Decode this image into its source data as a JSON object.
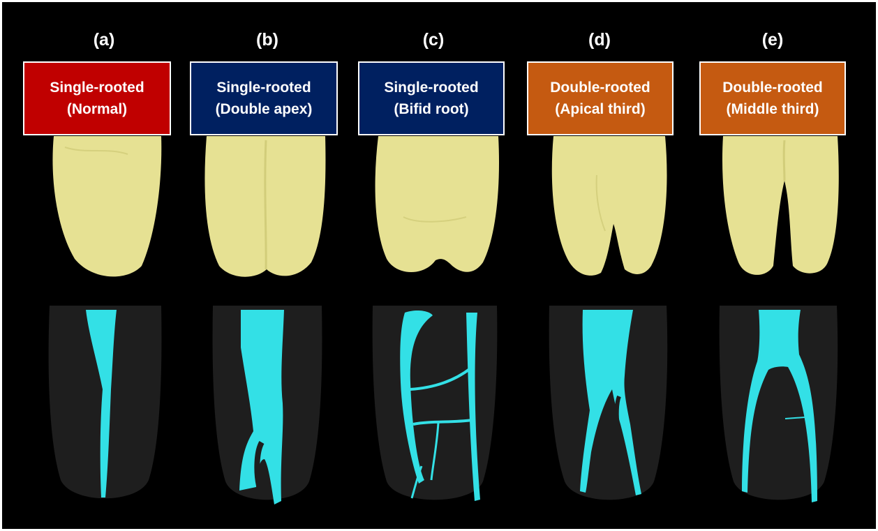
{
  "colors": {
    "background": "#000000",
    "normal": "#c00000",
    "single_variant": "#002060",
    "double_rooted": "#c55a11",
    "tooth_surface": "#e6e193",
    "canal": "#33e0e6",
    "tooth_shadow": "#1e1e1e"
  },
  "panels": [
    {
      "letter": "(a)",
      "line1": "Single-rooted",
      "line2": "(Normal)"
    },
    {
      "letter": "(b)",
      "line1": "Single-rooted",
      "line2": "(Double apex)"
    },
    {
      "letter": "(c)",
      "line1": "Single-rooted",
      "line2": "(Bifid root)"
    },
    {
      "letter": "(d)",
      "line1": "Double-rooted",
      "line2": "(Apical third)"
    },
    {
      "letter": "(e)",
      "line1": "Double-rooted",
      "line2": "(Middle third)"
    }
  ]
}
